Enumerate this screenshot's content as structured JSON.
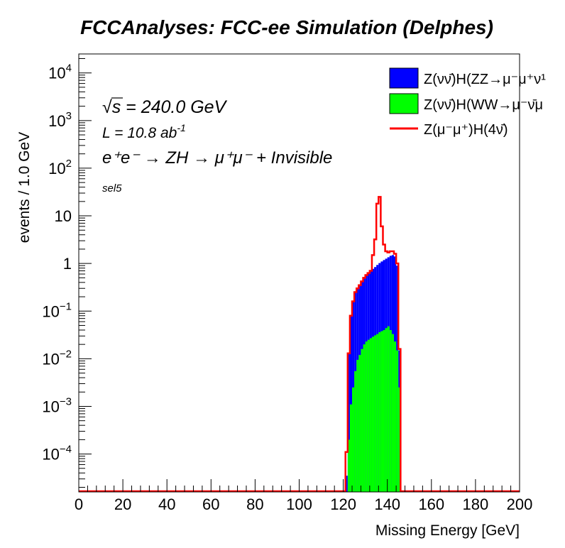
{
  "chart_data": {
    "type": "area",
    "title": "FCCAnalyses: FCC-ee Simulation (Delphes)",
    "xlabel": "Missing Energy [GeV]",
    "ylabel": "events / 1.0 GeV",
    "xlim": [
      0,
      200
    ],
    "ylim": [
      1.6e-05,
      25000
    ],
    "log_y": true,
    "grid": false,
    "legend_position": "top-right",
    "x_ticks": [
      "0",
      "20",
      "40",
      "60",
      "80",
      "100",
      "120",
      "140",
      "160",
      "180",
      "200"
    ],
    "y_ticks": [
      {
        "base": "10",
        "exp": "4"
      },
      {
        "base": "10",
        "exp": "3"
      },
      {
        "base": "10",
        "exp": "2"
      },
      {
        "base": "10",
        "exp": ""
      },
      {
        "base": "1",
        "exp": ""
      },
      {
        "base": "10",
        "exp": "−1"
      },
      {
        "base": "10",
        "exp": "−2"
      },
      {
        "base": "10",
        "exp": "−3"
      },
      {
        "base": "10",
        "exp": "−4"
      }
    ],
    "annotations": {
      "sqrt_s_symbol": "√",
      "sqrt_s_var": "s",
      "energy": " = 240.0 GeV",
      "lumi": "L = 10.8 ab",
      "lumi_exp": "-1",
      "process": "e⁺e⁻ → ZH → μ⁺μ⁻ + Invisible",
      "selection": "sel5"
    },
    "series": [
      {
        "name": "Z(νν̄)H(ZZ→μ⁻μ⁺ν¹",
        "color": "#0000ff",
        "style": "stacked-fill",
        "x": [
          121,
          122,
          123,
          124,
          125,
          126,
          127,
          128,
          129,
          130,
          131,
          132,
          133,
          134,
          135,
          136,
          137,
          138,
          139,
          140,
          141,
          142,
          143,
          144,
          145
        ],
        "values": [
          3.5e-05,
          0.013,
          0.08,
          0.16,
          0.25,
          0.3,
          0.35,
          0.42,
          0.5,
          0.57,
          0.63,
          0.7,
          0.77,
          0.84,
          0.93,
          1.02,
          1.1,
          1.18,
          1.26,
          1.35,
          1.45,
          1.5,
          1.4,
          0.9,
          0.015
        ]
      },
      {
        "name": "Z(νν̄)H(WW→μ⁻ν̄μ",
        "color": "#00ff00",
        "style": "stacked-fill",
        "x": [
          121,
          122,
          123,
          124,
          125,
          126,
          127,
          128,
          129,
          130,
          131,
          132,
          133,
          134,
          135,
          136,
          137,
          138,
          139,
          140,
          141,
          142,
          143,
          144,
          145
        ],
        "values": [
          0,
          0.0002,
          0.0011,
          0.0025,
          0.0055,
          0.0095,
          0.012,
          0.016,
          0.02,
          0.023,
          0.025,
          0.027,
          0.029,
          0.031,
          0.033,
          0.036,
          0.038,
          0.04,
          0.044,
          0.048,
          0.04,
          0.033,
          0.023,
          0.015,
          0.0025
        ]
      },
      {
        "name": "Z(μ⁻μ⁺)H(4ν̄)",
        "color": "#ff0000",
        "style": "line",
        "x": [
          121,
          122,
          123,
          124,
          125,
          126,
          127,
          128,
          129,
          130,
          131,
          132,
          133,
          134,
          135,
          136,
          137,
          138,
          139,
          140,
          141,
          142,
          143,
          144,
          145
        ],
        "values": [
          0.00011,
          0.013,
          0.08,
          0.16,
          0.25,
          0.3,
          0.35,
          0.42,
          0.5,
          0.57,
          0.63,
          0.7,
          1.5,
          3.2,
          18,
          25,
          6,
          2.5,
          1.8,
          1.7,
          1.8,
          1.8,
          1.6,
          1.0,
          0.016
        ]
      }
    ]
  }
}
